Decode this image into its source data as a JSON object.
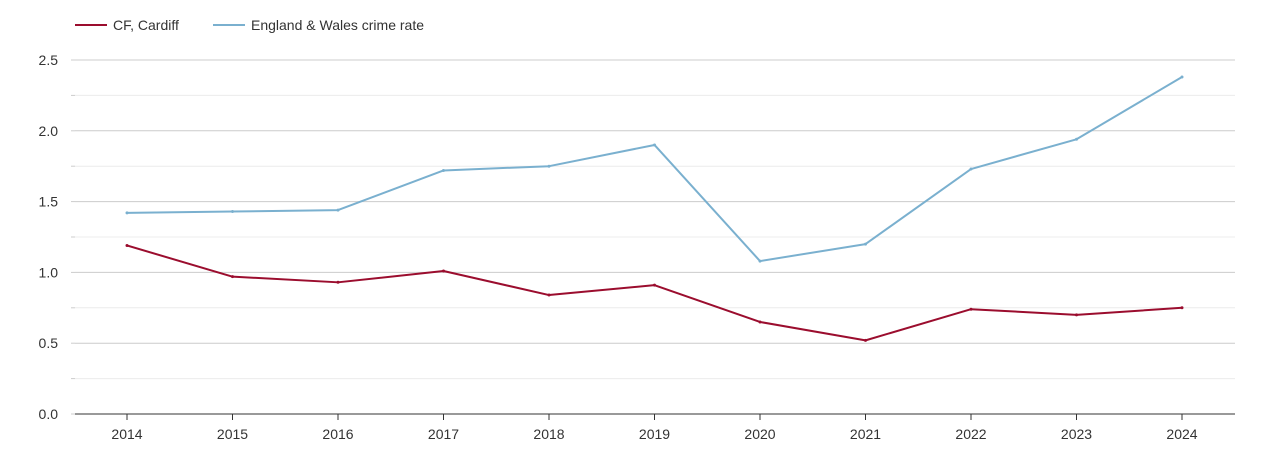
{
  "chart_data": {
    "type": "line",
    "title": "",
    "xlabel": "",
    "ylabel": "",
    "x": [
      "2014",
      "2015",
      "2016",
      "2017",
      "2018",
      "2019",
      "2020",
      "2021",
      "2022",
      "2023",
      "2024"
    ],
    "ylim": [
      0,
      2.5
    ],
    "y_ticks": [
      "0.0",
      "0.5",
      "1.0",
      "1.5",
      "2.0",
      "2.5"
    ],
    "grid": true,
    "legend_position": "top-left",
    "series": [
      {
        "name": "CF, Cardiff",
        "color": "#9b0d2e",
        "values": [
          1.19,
          0.97,
          0.93,
          1.01,
          0.84,
          0.91,
          0.65,
          0.52,
          0.74,
          0.7,
          0.75
        ]
      },
      {
        "name": "England & Wales crime rate",
        "color": "#7ab0cf",
        "values": [
          1.42,
          1.43,
          1.44,
          1.72,
          1.75,
          1.9,
          1.08,
          1.2,
          1.73,
          1.94,
          2.38
        ]
      }
    ]
  }
}
